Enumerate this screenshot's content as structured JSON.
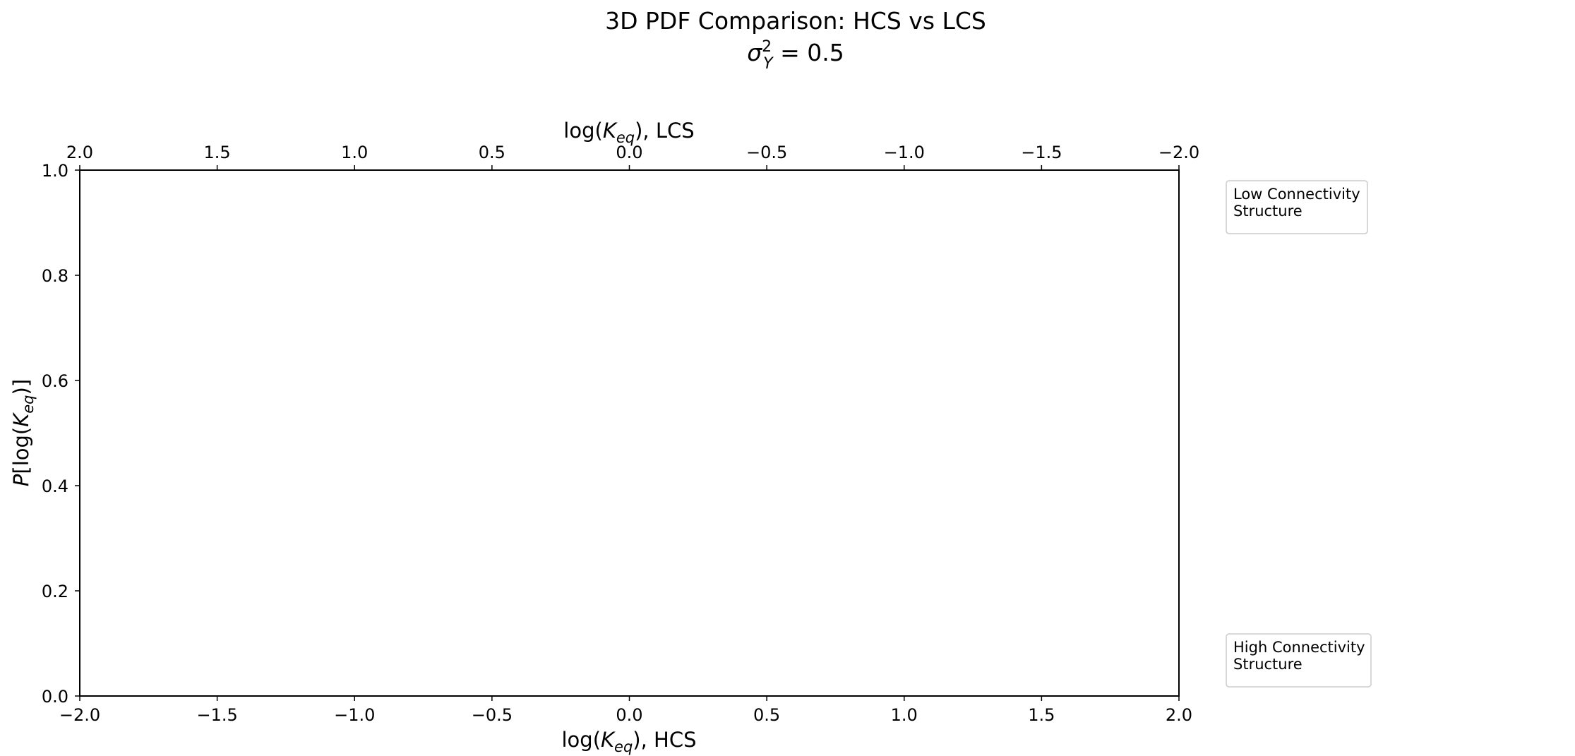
{
  "chart_data": {
    "type": "line",
    "title": "3D PDF Comparison: HCS vs LCS",
    "subtitle": {
      "sym": "σ",
      "sup": "2",
      "sub": "Y",
      "rest": " = 0.5"
    },
    "xlabel_bottom": {
      "pre": "log(",
      "var": "K",
      "sub": "eq",
      "post": "), HCS"
    },
    "xlabel_top": {
      "pre": "log(",
      "var": "K",
      "sub": "eq",
      "post": "), LCS"
    },
    "ylabel": {
      "pre": "P",
      "mid": "[log(",
      "var": "K",
      "sub": "eq",
      "post": ")]"
    },
    "xlim_bottom": [
      -2.0,
      2.0
    ],
    "xlim_top": [
      2.0,
      -2.0
    ],
    "ylim": [
      0.0,
      1.0
    ],
    "xticks_bottom": [
      "−2.0",
      "−1.5",
      "−1.0",
      "−0.5",
      "0.0",
      "0.5",
      "1.0",
      "1.5",
      "2.0"
    ],
    "xticks_bottom_values": [
      -2.0,
      -1.5,
      -1.0,
      -0.5,
      0.0,
      0.5,
      1.0,
      1.5,
      2.0
    ],
    "xticks_top": [
      "2.0",
      "1.5",
      "1.0",
      "0.5",
      "0.0",
      "−0.5",
      "−1.0",
      "−1.5",
      "−2.0"
    ],
    "xticks_top_values": [
      2.0,
      1.5,
      1.0,
      0.5,
      0.0,
      -0.5,
      -1.0,
      -1.5,
      -2.0
    ],
    "yticks": [
      "0.0",
      "0.2",
      "0.4",
      "0.6",
      "0.8",
      "1.0"
    ],
    "yticks_values": [
      0.0,
      0.2,
      0.4,
      0.6,
      0.8,
      1.0
    ],
    "grid": false,
    "series": [],
    "legends": [
      {
        "lines": [
          "Low Connectivity",
          "Structure"
        ],
        "placement": "upper-right outside"
      },
      {
        "lines": [
          "High Connectivity",
          "Structure"
        ],
        "placement": "lower-right outside"
      }
    ]
  }
}
